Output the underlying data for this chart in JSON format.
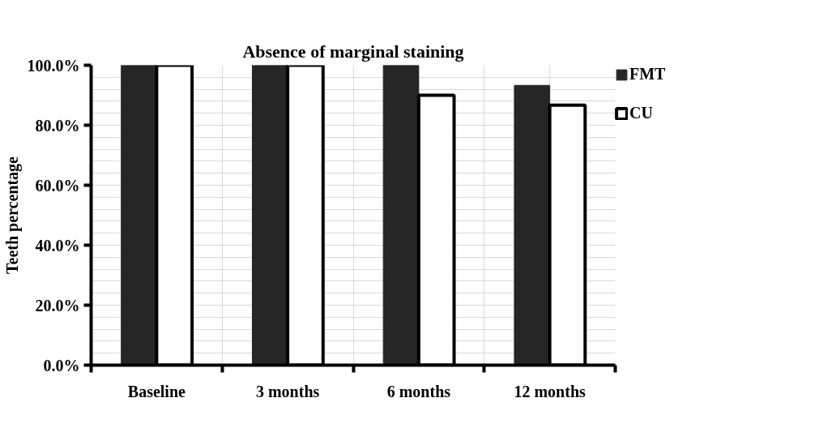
{
  "chart_data": {
    "type": "bar",
    "title": "Absence of marginal staining",
    "ylabel": "Teeth percentage",
    "categories": [
      "Baseline",
      "3 months",
      "6 months",
      "12 months"
    ],
    "series": [
      {
        "name": "FMT",
        "color": "#262626",
        "values": [
          100,
          100,
          100,
          93.3
        ]
      },
      {
        "name": "CU",
        "color": "#ffffff",
        "values": [
          100,
          100,
          90,
          86.7
        ]
      }
    ],
    "ylim": [
      0,
      100
    ],
    "yticks": [
      {
        "value": 0,
        "label": "0.0%"
      },
      {
        "value": 20,
        "label": "20.0%"
      },
      {
        "value": 40,
        "label": "40.0%"
      },
      {
        "value": 60,
        "label": "60.0%"
      },
      {
        "value": 80,
        "label": "80.0%"
      },
      {
        "value": 100,
        "label": "100.0%"
      }
    ],
    "grid": true,
    "legend": "right"
  }
}
